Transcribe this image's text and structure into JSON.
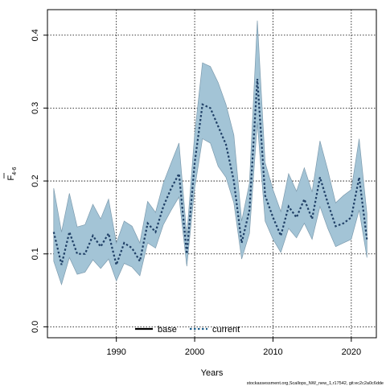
{
  "chart_data": {
    "type": "line",
    "xlabel": "Years",
    "ylabel_main": "F",
    "ylabel_sub": "4-6",
    "xlim": [
      1981.2,
      2023.2
    ],
    "ylim": [
      -0.015,
      0.435
    ],
    "x_ticks": [
      1990,
      2000,
      2010,
      2020
    ],
    "y_ticks": [
      0.0,
      0.1,
      0.2,
      0.3,
      0.4
    ],
    "y_tick_labels": [
      "0.0",
      "0.1",
      "0.2",
      "0.3",
      "0.4"
    ],
    "grid": true,
    "legend_position": "bottom-center",
    "legend": [
      {
        "label": "base",
        "color": "#000000",
        "style": "solid"
      },
      {
        "label": "current",
        "color": "#1f5f8b",
        "style": "dotted"
      }
    ],
    "x": [
      1982,
      1983,
      1984,
      1985,
      1986,
      1987,
      1988,
      1989,
      1990,
      1991,
      1992,
      1993,
      1994,
      1995,
      1996,
      1997,
      1998,
      1999,
      2000,
      2001,
      2002,
      2003,
      2004,
      2005,
      2006,
      2007,
      2008,
      2009,
      2010,
      2011,
      2012,
      2013,
      2014,
      2015,
      2016,
      2017,
      2018,
      2019,
      2020,
      2021,
      2022
    ],
    "series": [
      {
        "name": "current",
        "color": "#1f3f66",
        "values": [
          0.13,
          0.085,
          0.13,
          0.1,
          0.1,
          0.125,
          0.11,
          0.128,
          0.085,
          0.115,
          0.108,
          0.09,
          0.142,
          0.13,
          0.165,
          0.19,
          0.21,
          0.1,
          0.225,
          0.305,
          0.3,
          0.275,
          0.25,
          0.2,
          0.115,
          0.16,
          0.34,
          0.18,
          0.15,
          0.125,
          0.165,
          0.15,
          0.175,
          0.148,
          0.205,
          0.17,
          0.138,
          0.142,
          0.15,
          0.205,
          0.12
        ],
        "lower": [
          0.09,
          0.058,
          0.095,
          0.072,
          0.075,
          0.092,
          0.08,
          0.093,
          0.063,
          0.087,
          0.082,
          0.07,
          0.115,
          0.108,
          0.14,
          0.16,
          0.178,
          0.083,
          0.19,
          0.258,
          0.252,
          0.22,
          0.205,
          0.17,
          0.093,
          0.128,
          0.28,
          0.145,
          0.12,
          0.102,
          0.135,
          0.122,
          0.142,
          0.12,
          0.165,
          0.135,
          0.11,
          0.115,
          0.12,
          0.16,
          0.095
        ],
        "upper": [
          0.19,
          0.13,
          0.183,
          0.137,
          0.14,
          0.168,
          0.148,
          0.175,
          0.115,
          0.145,
          0.138,
          0.115,
          0.172,
          0.157,
          0.197,
          0.225,
          0.252,
          0.125,
          0.265,
          0.362,
          0.357,
          0.335,
          0.305,
          0.263,
          0.145,
          0.197,
          0.42,
          0.225,
          0.188,
          0.158,
          0.21,
          0.186,
          0.218,
          0.185,
          0.255,
          0.215,
          0.17,
          0.18,
          0.188,
          0.258,
          0.155
        ]
      }
    ]
  },
  "footnote": "stockassessment.org,Scallops_NW_new_1,r17542, git:ec2c2a0c6dde"
}
